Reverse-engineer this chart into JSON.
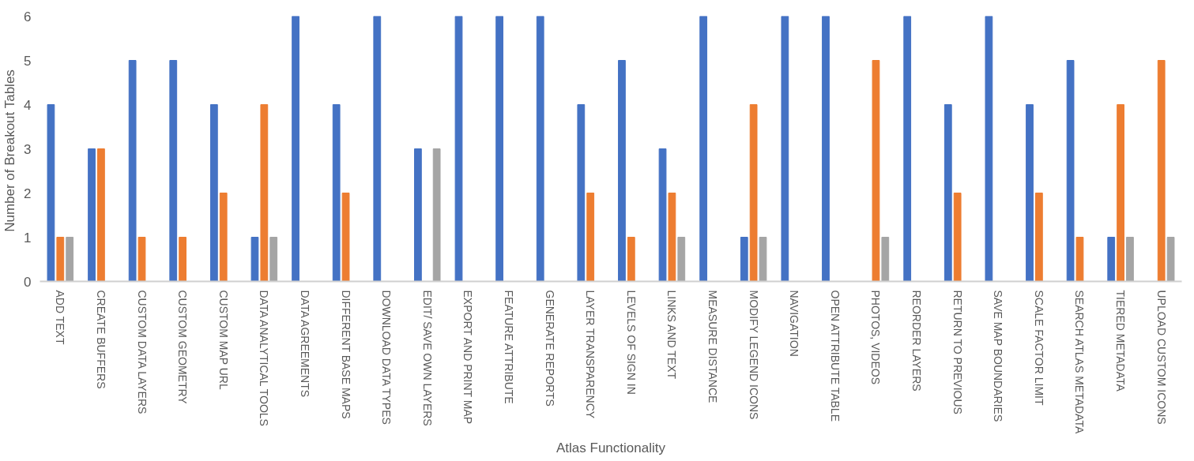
{
  "chart_data": {
    "type": "bar",
    "xlabel": "Atlas Functionality",
    "ylabel": "Number of  Breakout Tables",
    "categories": [
      "ADD TEXT",
      "CREATE BUFFERS",
      "CUSTOM DATA LAYERS",
      "CUSTOM GEOMETRY",
      "CUSTOM MAP URL",
      "DATA ANALYTICAL TOOLS",
      "DATA AGREEMENTS",
      "DIFFERENT BASE MAPS",
      "DOWNLOAD DATA TYPES",
      "EDIT/ SAVE OWN LAYERS",
      "EXPORT AND PRINT MAP",
      "FEATURE ATTRIBUTE",
      "GENERATE REPORTS",
      "LAYER TRANSPARENCY",
      "LEVELS OF SIGN IN",
      "LINKS AND TEXT",
      "MEASURE DISTANCE",
      "MODIFY LEGEND ICONS",
      "NAVIGATION",
      "OPEN ATTRIBUTE TABLE",
      "PHOTOS, VIDEOS",
      "REORDER LAYERS",
      "RETURN TO PREVIOUS",
      "SAVE MAP BOUNDARIES",
      "SCALE FACTOR LIMIT",
      "SEARCH ATLAS METADATA",
      "TIERED METADATA",
      "UPLOAD CUSTOM ICONS"
    ],
    "series": [
      {
        "color": "#4472c4",
        "values": [
          4,
          3,
          5,
          5,
          4,
          1,
          6,
          4,
          6,
          3,
          6,
          6,
          6,
          4,
          5,
          3,
          6,
          1,
          6,
          6,
          0,
          6,
          4,
          6,
          4,
          5,
          1,
          0
        ]
      },
      {
        "color": "#ed7d31",
        "values": [
          1,
          3,
          1,
          1,
          2,
          4,
          0,
          2,
          0,
          0,
          0,
          0,
          0,
          2,
          1,
          2,
          0,
          4,
          0,
          0,
          5,
          0,
          2,
          0,
          2,
          1,
          4,
          5
        ]
      },
      {
        "color": "#a5a5a5",
        "values": [
          1,
          0,
          0,
          0,
          0,
          1,
          0,
          0,
          0,
          3,
          0,
          0,
          0,
          0,
          0,
          1,
          0,
          1,
          0,
          0,
          1,
          0,
          0,
          0,
          0,
          0,
          1,
          1
        ]
      }
    ],
    "ylim": [
      0,
      6
    ],
    "yticks": [
      0,
      1,
      2,
      3,
      4,
      5,
      6
    ],
    "grid": false
  }
}
